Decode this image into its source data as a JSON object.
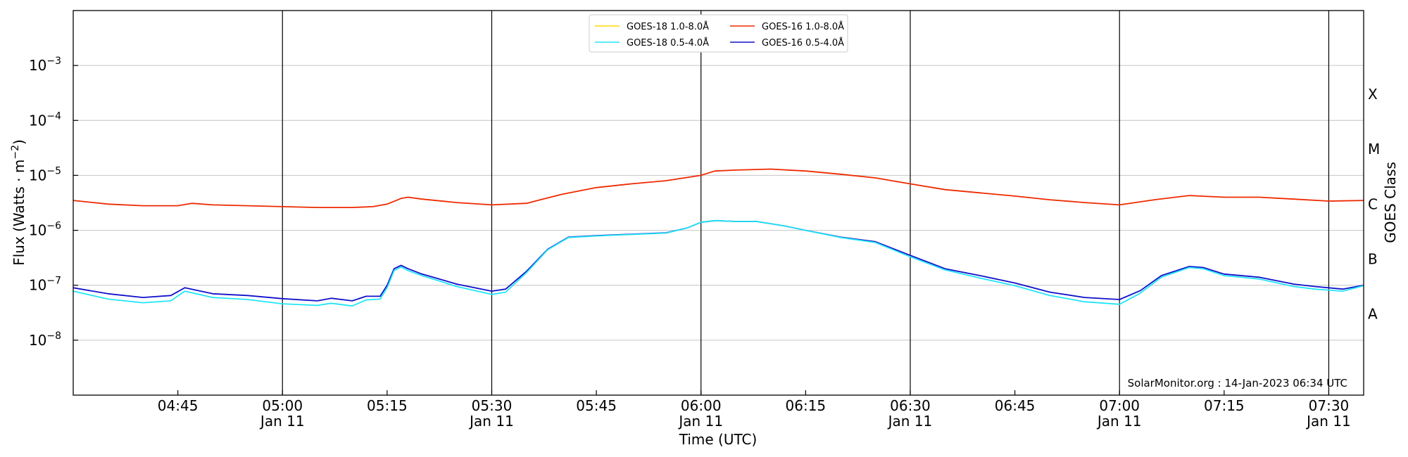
{
  "chart_data": {
    "type": "line",
    "xlabel": "Time (UTC)",
    "ylabel_main": "Flux (Watts · m",
    "ylabel_sup": "−2",
    "ylabel_close": ")",
    "ylabel_right": "GOES Class",
    "y_scale": "log",
    "ylim": [
      1e-09,
      0.01
    ],
    "xlim": [
      "04:30",
      "07:35"
    ],
    "grid": "horizontal",
    "legend_position": "top-center",
    "y_ticks": [
      {
        "value": 1e-08,
        "base": "10",
        "exp": "−8"
      },
      {
        "value": 1e-07,
        "base": "10",
        "exp": "−7"
      },
      {
        "value": 1e-06,
        "base": "10",
        "exp": "−6"
      },
      {
        "value": 1e-05,
        "base": "10",
        "exp": "−5"
      },
      {
        "value": 0.0001,
        "base": "10",
        "exp": "−4"
      },
      {
        "value": 0.001,
        "base": "10",
        "exp": "−3"
      }
    ],
    "x_ticks": [
      {
        "time": "04:45",
        "label": "04:45",
        "date": "",
        "major": false
      },
      {
        "time": "05:00",
        "label": "05:00",
        "date": "Jan 11",
        "major": true
      },
      {
        "time": "05:15",
        "label": "05:15",
        "date": "",
        "major": false
      },
      {
        "time": "05:30",
        "label": "05:30",
        "date": "Jan 11",
        "major": true
      },
      {
        "time": "05:45",
        "label": "05:45",
        "date": "",
        "major": false
      },
      {
        "time": "06:00",
        "label": "06:00",
        "date": "Jan 11",
        "major": true
      },
      {
        "time": "06:15",
        "label": "06:15",
        "date": "",
        "major": false
      },
      {
        "time": "06:30",
        "label": "06:30",
        "date": "Jan 11",
        "major": true
      },
      {
        "time": "06:45",
        "label": "06:45",
        "date": "",
        "major": false
      },
      {
        "time": "07:00",
        "label": "07:00",
        "date": "Jan 11",
        "major": true
      },
      {
        "time": "07:15",
        "label": "07:15",
        "date": "",
        "major": false
      },
      {
        "time": "07:30",
        "label": "07:30",
        "date": "Jan 11",
        "major": true
      }
    ],
    "goes_classes": [
      {
        "label": "A",
        "value": 3e-08
      },
      {
        "label": "B",
        "value": 3e-07
      },
      {
        "label": "C",
        "value": 3e-06
      },
      {
        "label": "M",
        "value": 3e-05
      },
      {
        "label": "X",
        "value": 0.0003
      }
    ],
    "annotation": "SolarMonitor.org : 14-Jan-2023 06:34 UTC",
    "legend": [
      {
        "name": "GOES-18 1.0-8.0Å",
        "color": "#ffd700"
      },
      {
        "name": "GOES-16 1.0-8.0Å",
        "color": "#ee2a00"
      },
      {
        "name": "GOES-18 0.5-4.0Å",
        "color": "#22e5f5"
      },
      {
        "name": "GOES-16 0.5-4.0Å",
        "color": "#1010cc"
      }
    ],
    "series": [
      {
        "name": "GOES-16 1.0-8.0Å",
        "color": "#ee2a00",
        "x": [
          "04:30",
          "04:35",
          "04:40",
          "04:45",
          "04:47",
          "04:50",
          "04:55",
          "05:00",
          "05:05",
          "05:10",
          "05:13",
          "05:15",
          "05:17",
          "05:18",
          "05:20",
          "05:25",
          "05:30",
          "05:35",
          "05:40",
          "05:45",
          "05:50",
          "05:55",
          "06:00",
          "06:02",
          "06:05",
          "06:10",
          "06:15",
          "06:20",
          "06:25",
          "06:30",
          "06:35",
          "06:40",
          "06:45",
          "06:50",
          "06:55",
          "07:00",
          "07:05",
          "07:10",
          "07:15",
          "07:20",
          "07:25",
          "07:30",
          "07:35"
        ],
        "values": [
          3.5e-06,
          3e-06,
          2.8e-06,
          2.8e-06,
          3.1e-06,
          2.9e-06,
          2.8e-06,
          2.7e-06,
          2.6e-06,
          2.6e-06,
          2.7e-06,
          3e-06,
          3.8e-06,
          4e-06,
          3.7e-06,
          3.2e-06,
          2.9e-06,
          3.1e-06,
          4.5e-06,
          6e-06,
          7e-06,
          8e-06,
          1e-05,
          1.2e-05,
          1.25e-05,
          1.3e-05,
          1.2e-05,
          1.05e-05,
          9e-06,
          7e-06,
          5.5e-06,
          4.8e-06,
          4.2e-06,
          3.6e-06,
          3.2e-06,
          2.9e-06,
          3.6e-06,
          4.3e-06,
          4e-06,
          4e-06,
          3.7e-06,
          3.4e-06,
          3.5e-06
        ]
      },
      {
        "name": "GOES-16 0.5-4.0Å",
        "color": "#1010cc",
        "x": [
          "04:30",
          "04:35",
          "04:40",
          "04:44",
          "04:46",
          "04:50",
          "04:55",
          "05:00",
          "05:05",
          "05:07",
          "05:10",
          "05:12",
          "05:14",
          "05:15",
          "05:16",
          "05:17",
          "05:18",
          "05:20",
          "05:25",
          "05:30",
          "05:32",
          "05:35",
          "05:38",
          "05:41",
          "05:45",
          "05:50",
          "05:55",
          "05:58",
          "06:00",
          "06:02",
          "06:05",
          "06:08",
          "06:12",
          "06:15",
          "06:20",
          "06:25",
          "06:30",
          "06:35",
          "06:40",
          "06:45",
          "06:50",
          "06:55",
          "07:00",
          "07:03",
          "07:06",
          "07:10",
          "07:12",
          "07:15",
          "07:20",
          "07:25",
          "07:28",
          "07:32",
          "07:35"
        ],
        "values": [
          9e-08,
          7e-08,
          6e-08,
          6.5e-08,
          9e-08,
          7e-08,
          6.5e-08,
          5.7e-08,
          5.2e-08,
          5.8e-08,
          5.2e-08,
          6.3e-08,
          6.3e-08,
          1e-07,
          2e-07,
          2.3e-07,
          2e-07,
          1.6e-07,
          1.05e-07,
          7.8e-08,
          8.5e-08,
          1.8e-07,
          4.5e-07,
          7.5e-07,
          8e-07,
          8.5e-07,
          9e-07,
          1.1e-06,
          1.4e-06,
          1.5e-06,
          1.45e-06,
          1.45e-06,
          1.2e-06,
          1e-06,
          7.5e-07,
          6.2e-07,
          3.5e-07,
          2e-07,
          1.5e-07,
          1.1e-07,
          7.5e-08,
          6e-08,
          5.5e-08,
          8e-08,
          1.5e-07,
          2.2e-07,
          2.1e-07,
          1.6e-07,
          1.4e-07,
          1.05e-07,
          9.5e-08,
          8.5e-08,
          1e-07
        ]
      },
      {
        "name": "GOES-18 0.5-4.0Å",
        "color": "#22e5f5",
        "x": [
          "04:30",
          "04:35",
          "04:40",
          "04:44",
          "04:46",
          "04:50",
          "04:55",
          "05:00",
          "05:05",
          "05:07",
          "05:10",
          "05:12",
          "05:14",
          "05:15",
          "05:16",
          "05:17",
          "05:18",
          "05:20",
          "05:25",
          "05:30",
          "05:32",
          "05:35",
          "05:38",
          "05:41",
          "05:45",
          "05:50",
          "05:55",
          "05:58",
          "06:00",
          "06:02",
          "06:05",
          "06:08",
          "06:12",
          "06:15",
          "06:20",
          "06:25",
          "06:30",
          "06:35",
          "06:40",
          "06:45",
          "06:50",
          "06:55",
          "07:00",
          "07:03",
          "07:06",
          "07:10",
          "07:12",
          "07:15",
          "07:20",
          "07:25",
          "07:28",
          "07:32",
          "07:35"
        ],
        "values": [
          7.8e-08,
          5.6e-08,
          4.8e-08,
          5.2e-08,
          7.8e-08,
          6e-08,
          5.5e-08,
          4.6e-08,
          4.3e-08,
          4.7e-08,
          4.2e-08,
          5.4e-08,
          5.6e-08,
          9e-08,
          1.85e-07,
          2.15e-07,
          1.85e-07,
          1.5e-07,
          9.5e-08,
          6.8e-08,
          7.5e-08,
          1.7e-07,
          4.4e-07,
          7.4e-07,
          7.9e-07,
          8.4e-07,
          8.9e-07,
          1.1e-06,
          1.4e-06,
          1.5e-06,
          1.45e-06,
          1.45e-06,
          1.2e-06,
          1e-06,
          7.4e-07,
          6e-07,
          3.3e-07,
          1.9e-07,
          1.35e-07,
          9.8e-08,
          6.5e-08,
          5e-08,
          4.5e-08,
          7.2e-08,
          1.4e-07,
          2.1e-07,
          2e-07,
          1.5e-07,
          1.3e-07,
          9.5e-08,
          8.5e-08,
          7.8e-08,
          9.8e-08
        ]
      }
    ]
  }
}
